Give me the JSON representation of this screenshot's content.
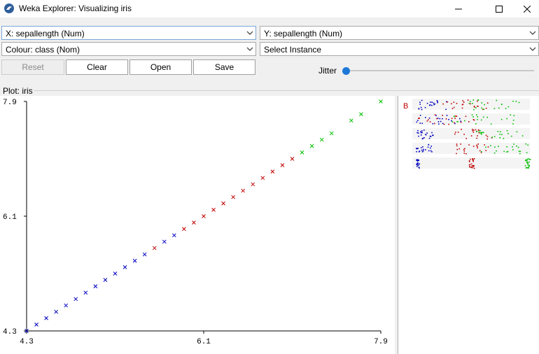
{
  "window": {
    "title": "Weka Explorer: Visualizing iris",
    "icon": "weka-bird-icon"
  },
  "controls": {
    "x_axis": "X: sepallength (Num)",
    "y_axis": "Y: sepallength (Num)",
    "colour": "Colour: class (Nom)",
    "instance": "Select Instance"
  },
  "buttons": {
    "reset": "Reset",
    "clear": "Clear",
    "open": "Open",
    "save": "Save"
  },
  "jitter": {
    "label": "Jitter",
    "value": 0
  },
  "plot": {
    "label": "Plot: iris"
  },
  "colors": {
    "setosa": "#0000c0",
    "versicolor": "#c00000",
    "virginica": "#00c000",
    "accent": "#1e78d8"
  },
  "legend": {
    "marker": "B"
  },
  "chart_data": {
    "type": "scatter",
    "xlabel": "sepallength",
    "ylabel": "sepallength",
    "xlim": [
      4.3,
      7.9
    ],
    "ylim": [
      4.3,
      7.9
    ],
    "xticks": [
      "4.3",
      "6.1",
      "7.9"
    ],
    "yticks": [
      "4.3",
      "6.1",
      "7.9"
    ],
    "series": [
      {
        "values": [
          4.3,
          4.4,
          4.5,
          4.6,
          4.7,
          4.8,
          4.9,
          5.0,
          5.1,
          5.2,
          5.3,
          5.4,
          5.5,
          5.7,
          5.8
        ]
      },
      {
        "values": [
          5.6,
          5.9,
          6.0,
          6.1,
          6.2,
          6.3,
          6.4,
          6.5,
          6.6,
          6.7,
          6.8,
          6.9,
          7.0
        ]
      },
      {
        "values": [
          7.1,
          7.2,
          7.3,
          7.4,
          7.6,
          7.7,
          7.9
        ]
      }
    ]
  }
}
